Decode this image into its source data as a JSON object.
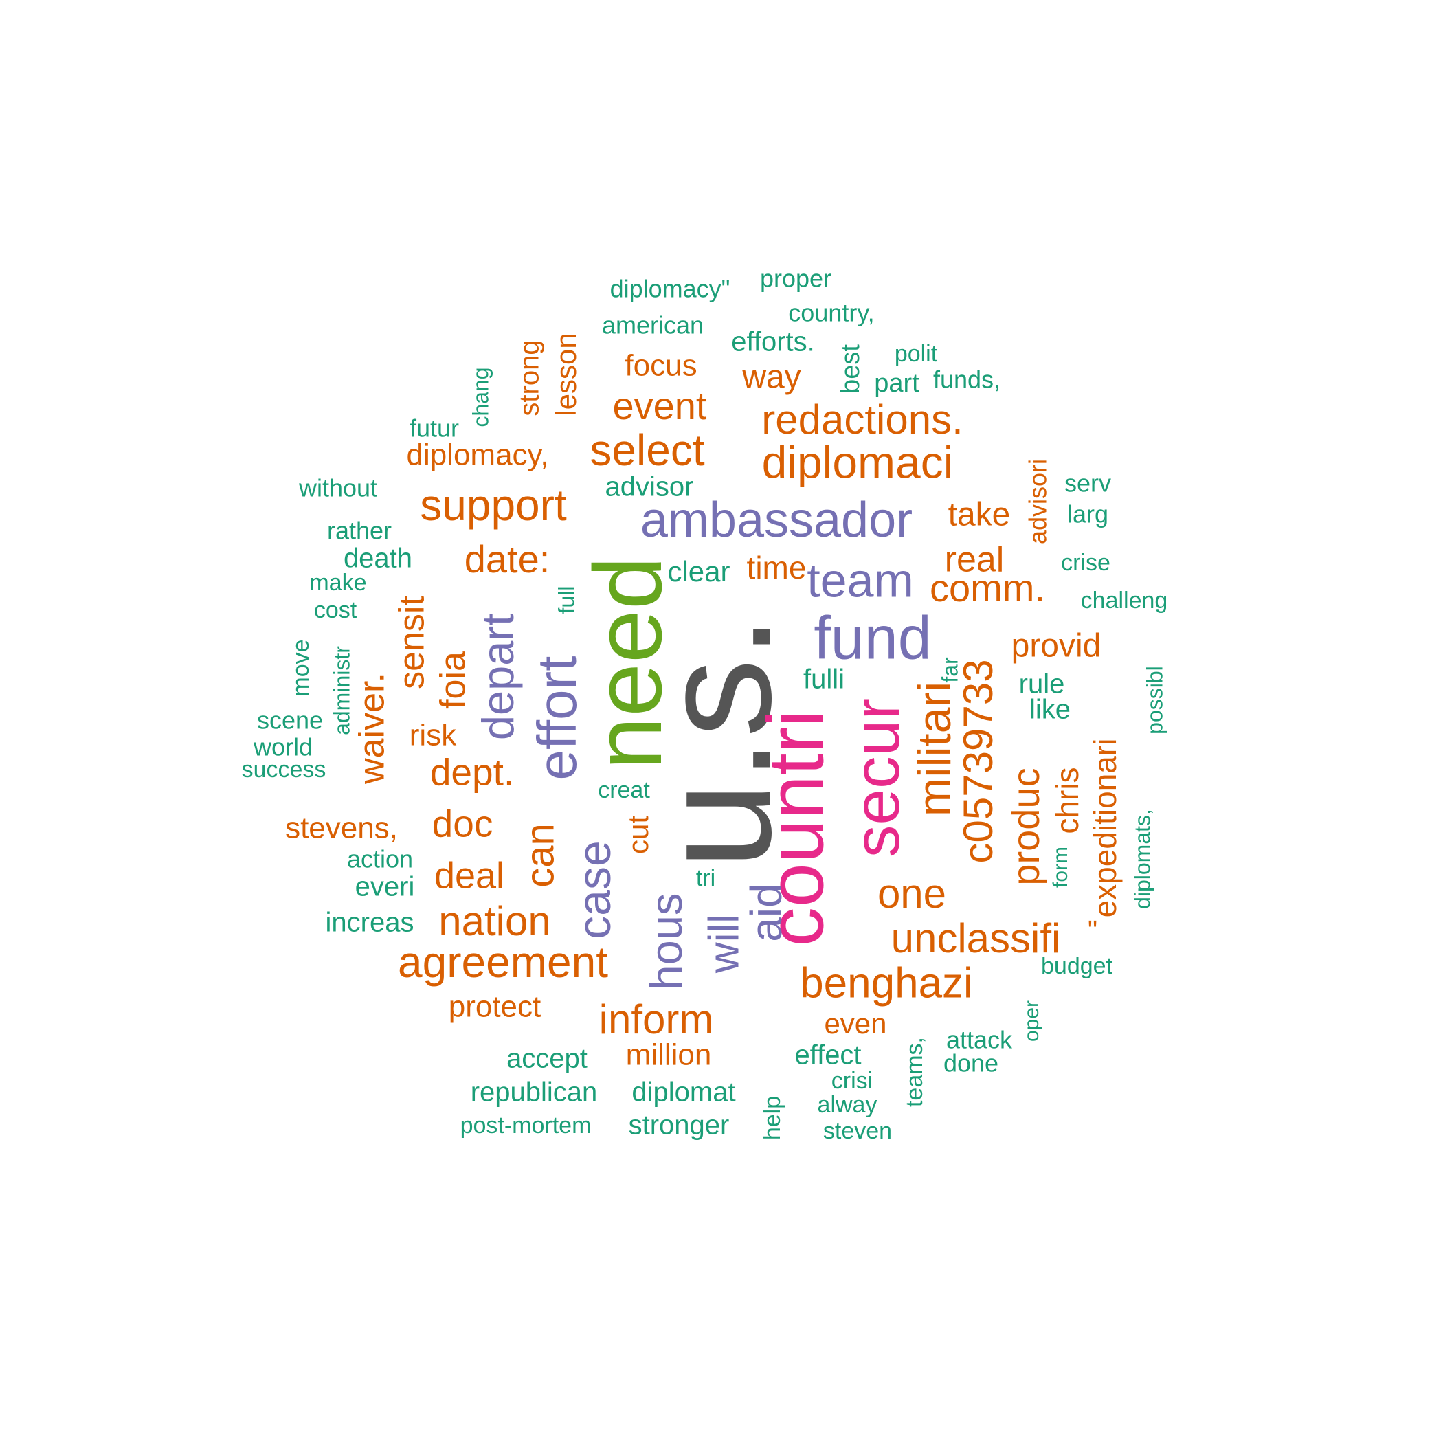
{
  "palette": {
    "green": "#1b9e77",
    "orange": "#d95f02",
    "purple": "#7570b3",
    "magenta": "#e7298a",
    "lime": "#66a61e",
    "gray": "#555555"
  },
  "words": [
    {
      "text": "u.s.",
      "color": "gray"
    },
    {
      "text": "need",
      "color": "lime"
    },
    {
      "text": "countri",
      "color": "magenta"
    },
    {
      "text": "secur",
      "color": "magenta"
    },
    {
      "text": "fund",
      "color": "purple"
    },
    {
      "text": "ambassador",
      "color": "purple"
    },
    {
      "text": "effort",
      "color": "purple"
    },
    {
      "text": "depart",
      "color": "purple"
    },
    {
      "text": "case",
      "color": "purple"
    },
    {
      "text": "hous",
      "color": "purple"
    },
    {
      "text": "will",
      "color": "purple"
    },
    {
      "text": "aid",
      "color": "purple"
    },
    {
      "text": "team",
      "color": "purple"
    },
    {
      "text": "militari",
      "color": "orange"
    },
    {
      "text": "c05739733",
      "color": "orange"
    },
    {
      "text": "diplomaci",
      "color": "orange"
    },
    {
      "text": "redactions.",
      "color": "orange"
    },
    {
      "text": "select",
      "color": "orange"
    },
    {
      "text": "support",
      "color": "orange"
    },
    {
      "text": "agreement",
      "color": "orange"
    },
    {
      "text": "benghazi",
      "color": "orange"
    },
    {
      "text": "unclassifi",
      "color": "orange"
    },
    {
      "text": "inform",
      "color": "orange"
    },
    {
      "text": "nation",
      "color": "orange"
    },
    {
      "text": "one",
      "color": "orange"
    },
    {
      "text": "comm.",
      "color": "orange"
    },
    {
      "text": "date:",
      "color": "orange"
    },
    {
      "text": "event",
      "color": "orange"
    },
    {
      "text": "can",
      "color": "orange"
    },
    {
      "text": "produc",
      "color": "orange"
    },
    {
      "text": "dept.",
      "color": "orange"
    },
    {
      "text": "doc",
      "color": "orange"
    },
    {
      "text": "deal",
      "color": "orange"
    },
    {
      "text": "waiver.",
      "color": "orange"
    },
    {
      "text": "sensit",
      "color": "orange"
    },
    {
      "text": "foia",
      "color": "orange"
    },
    {
      "text": "provid",
      "color": "orange"
    },
    {
      "text": "chris",
      "color": "orange"
    },
    {
      "text": "expeditionari",
      "color": "orange"
    },
    {
      "text": "take",
      "color": "orange"
    },
    {
      "text": "real",
      "color": "orange"
    },
    {
      "text": "time",
      "color": "orange"
    },
    {
      "text": "way",
      "color": "orange"
    },
    {
      "text": "focus",
      "color": "orange"
    },
    {
      "text": "diplomacy,",
      "color": "orange"
    },
    {
      "text": "stevens,",
      "color": "orange"
    },
    {
      "text": "protect",
      "color": "orange"
    },
    {
      "text": "million",
      "color": "orange"
    },
    {
      "text": "even",
      "color": "orange"
    },
    {
      "text": "risk",
      "color": "orange"
    },
    {
      "text": "cut",
      "color": "orange"
    },
    {
      "text": "strong",
      "color": "orange"
    },
    {
      "text": "lesson",
      "color": "orange"
    },
    {
      "text": "advisori",
      "color": "orange"
    },
    {
      "text": "\"",
      "color": "orange"
    },
    {
      "text": "diplomacy\"",
      "color": "green"
    },
    {
      "text": "proper",
      "color": "green"
    },
    {
      "text": "american",
      "color": "green"
    },
    {
      "text": "country,",
      "color": "green"
    },
    {
      "text": "efforts.",
      "color": "green"
    },
    {
      "text": "polit",
      "color": "green"
    },
    {
      "text": "best",
      "color": "green"
    },
    {
      "text": "part",
      "color": "green"
    },
    {
      "text": "funds,",
      "color": "green"
    },
    {
      "text": "chang",
      "color": "green"
    },
    {
      "text": "futur",
      "color": "green"
    },
    {
      "text": "without",
      "color": "green"
    },
    {
      "text": "advisor",
      "color": "green"
    },
    {
      "text": "serv",
      "color": "green"
    },
    {
      "text": "larg",
      "color": "green"
    },
    {
      "text": "rather",
      "color": "green"
    },
    {
      "text": "death",
      "color": "green"
    },
    {
      "text": "make",
      "color": "green"
    },
    {
      "text": "cost",
      "color": "green"
    },
    {
      "text": "clear",
      "color": "green"
    },
    {
      "text": "full",
      "color": "green"
    },
    {
      "text": "crise",
      "color": "green"
    },
    {
      "text": "challeng",
      "color": "green"
    },
    {
      "text": "move",
      "color": "green"
    },
    {
      "text": "administr",
      "color": "green"
    },
    {
      "text": "scene",
      "color": "green"
    },
    {
      "text": "world",
      "color": "green"
    },
    {
      "text": "success",
      "color": "green"
    },
    {
      "text": "fulli",
      "color": "green"
    },
    {
      "text": "far",
      "color": "green"
    },
    {
      "text": "rule",
      "color": "green"
    },
    {
      "text": "like",
      "color": "green"
    },
    {
      "text": "possibl",
      "color": "green"
    },
    {
      "text": "creat",
      "color": "green"
    },
    {
      "text": "action",
      "color": "green"
    },
    {
      "text": "everi",
      "color": "green"
    },
    {
      "text": "increas",
      "color": "green"
    },
    {
      "text": "tri",
      "color": "green"
    },
    {
      "text": "form",
      "color": "green"
    },
    {
      "text": "diplomats,",
      "color": "green"
    },
    {
      "text": "budget",
      "color": "green"
    },
    {
      "text": "oper",
      "color": "green"
    },
    {
      "text": "attack",
      "color": "green"
    },
    {
      "text": "done",
      "color": "green"
    },
    {
      "text": "teams,",
      "color": "green"
    },
    {
      "text": "effect",
      "color": "green"
    },
    {
      "text": "crisi",
      "color": "green"
    },
    {
      "text": "alway",
      "color": "green"
    },
    {
      "text": "steven",
      "color": "green"
    },
    {
      "text": "help",
      "color": "green"
    },
    {
      "text": "accept",
      "color": "green"
    },
    {
      "text": "republican",
      "color": "green"
    },
    {
      "text": "diplomat",
      "color": "green"
    },
    {
      "text": "post-mortem",
      "color": "green"
    },
    {
      "text": "stronger",
      "color": "green"
    }
  ]
}
